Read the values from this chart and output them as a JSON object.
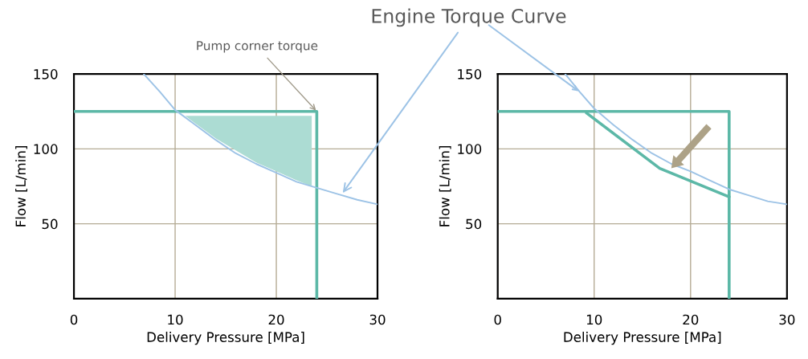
{
  "chart_data": [
    {
      "type": "line",
      "xlabel": "Delivery Pressure [MPa]",
      "ylabel": "Flow [L/min]",
      "xlim": [
        0,
        30
      ],
      "ylim": [
        0,
        150
      ],
      "xticks": [
        0,
        10,
        20,
        30
      ],
      "yticks": [
        50,
        100,
        150
      ],
      "grid": true,
      "line_style": "solid",
      "series": [
        {
          "color": "#5cb8a7",
          "x": [
            0,
            24,
            24
          ],
          "values": [
            125,
            125,
            0
          ]
        },
        {
          "color": "#9dc3e6",
          "x": [
            6.9,
            8.5,
            10,
            12,
            14,
            16,
            18,
            20,
            22,
            24,
            26,
            28,
            30
          ],
          "values": [
            150,
            138,
            126,
            116,
            106,
            97,
            90,
            84,
            78,
            74,
            70,
            66,
            63
          ]
        },
        {
          "type": "area",
          "color": "#acdcd3",
          "x": [
            11,
            23.5,
            23.5,
            22,
            20,
            18,
            16,
            14,
            12
          ],
          "values": [
            122,
            122,
            75,
            79,
            85,
            91,
            99,
            107,
            117
          ]
        }
      ],
      "annotations": [
        {
          "text": "Pump corner torque",
          "x": 24,
          "y": 125
        },
        {
          "text": "Engine Torque Curve",
          "x": 26.5,
          "y": 70
        }
      ]
    },
    {
      "type": "line",
      "xlabel": "Delivery Pressure [MPa]",
      "ylabel": "Flow [L/min]",
      "xlim": [
        0,
        30
      ],
      "ylim": [
        0,
        150
      ],
      "xticks": [
        0,
        10,
        20,
        30
      ],
      "yticks": [
        50,
        100,
        150
      ],
      "grid": true,
      "line_style": "solid",
      "series": [
        {
          "color": "#5cb8a7",
          "x": [
            0,
            24,
            24
          ],
          "values": [
            125,
            125,
            0
          ]
        },
        {
          "color": "#9dc3e6",
          "x": [
            7,
            8.5,
            10,
            12,
            14,
            16,
            18,
            20,
            22,
            24,
            26,
            28,
            30
          ],
          "values": [
            150,
            138,
            127,
            116,
            106,
            97,
            90,
            85,
            79,
            73,
            69,
            65,
            63
          ]
        },
        {
          "color": "#5cb8a7",
          "x": [
            9.2,
            16.8,
            24
          ],
          "values": [
            124,
            87,
            68
          ]
        }
      ]
    }
  ]
}
